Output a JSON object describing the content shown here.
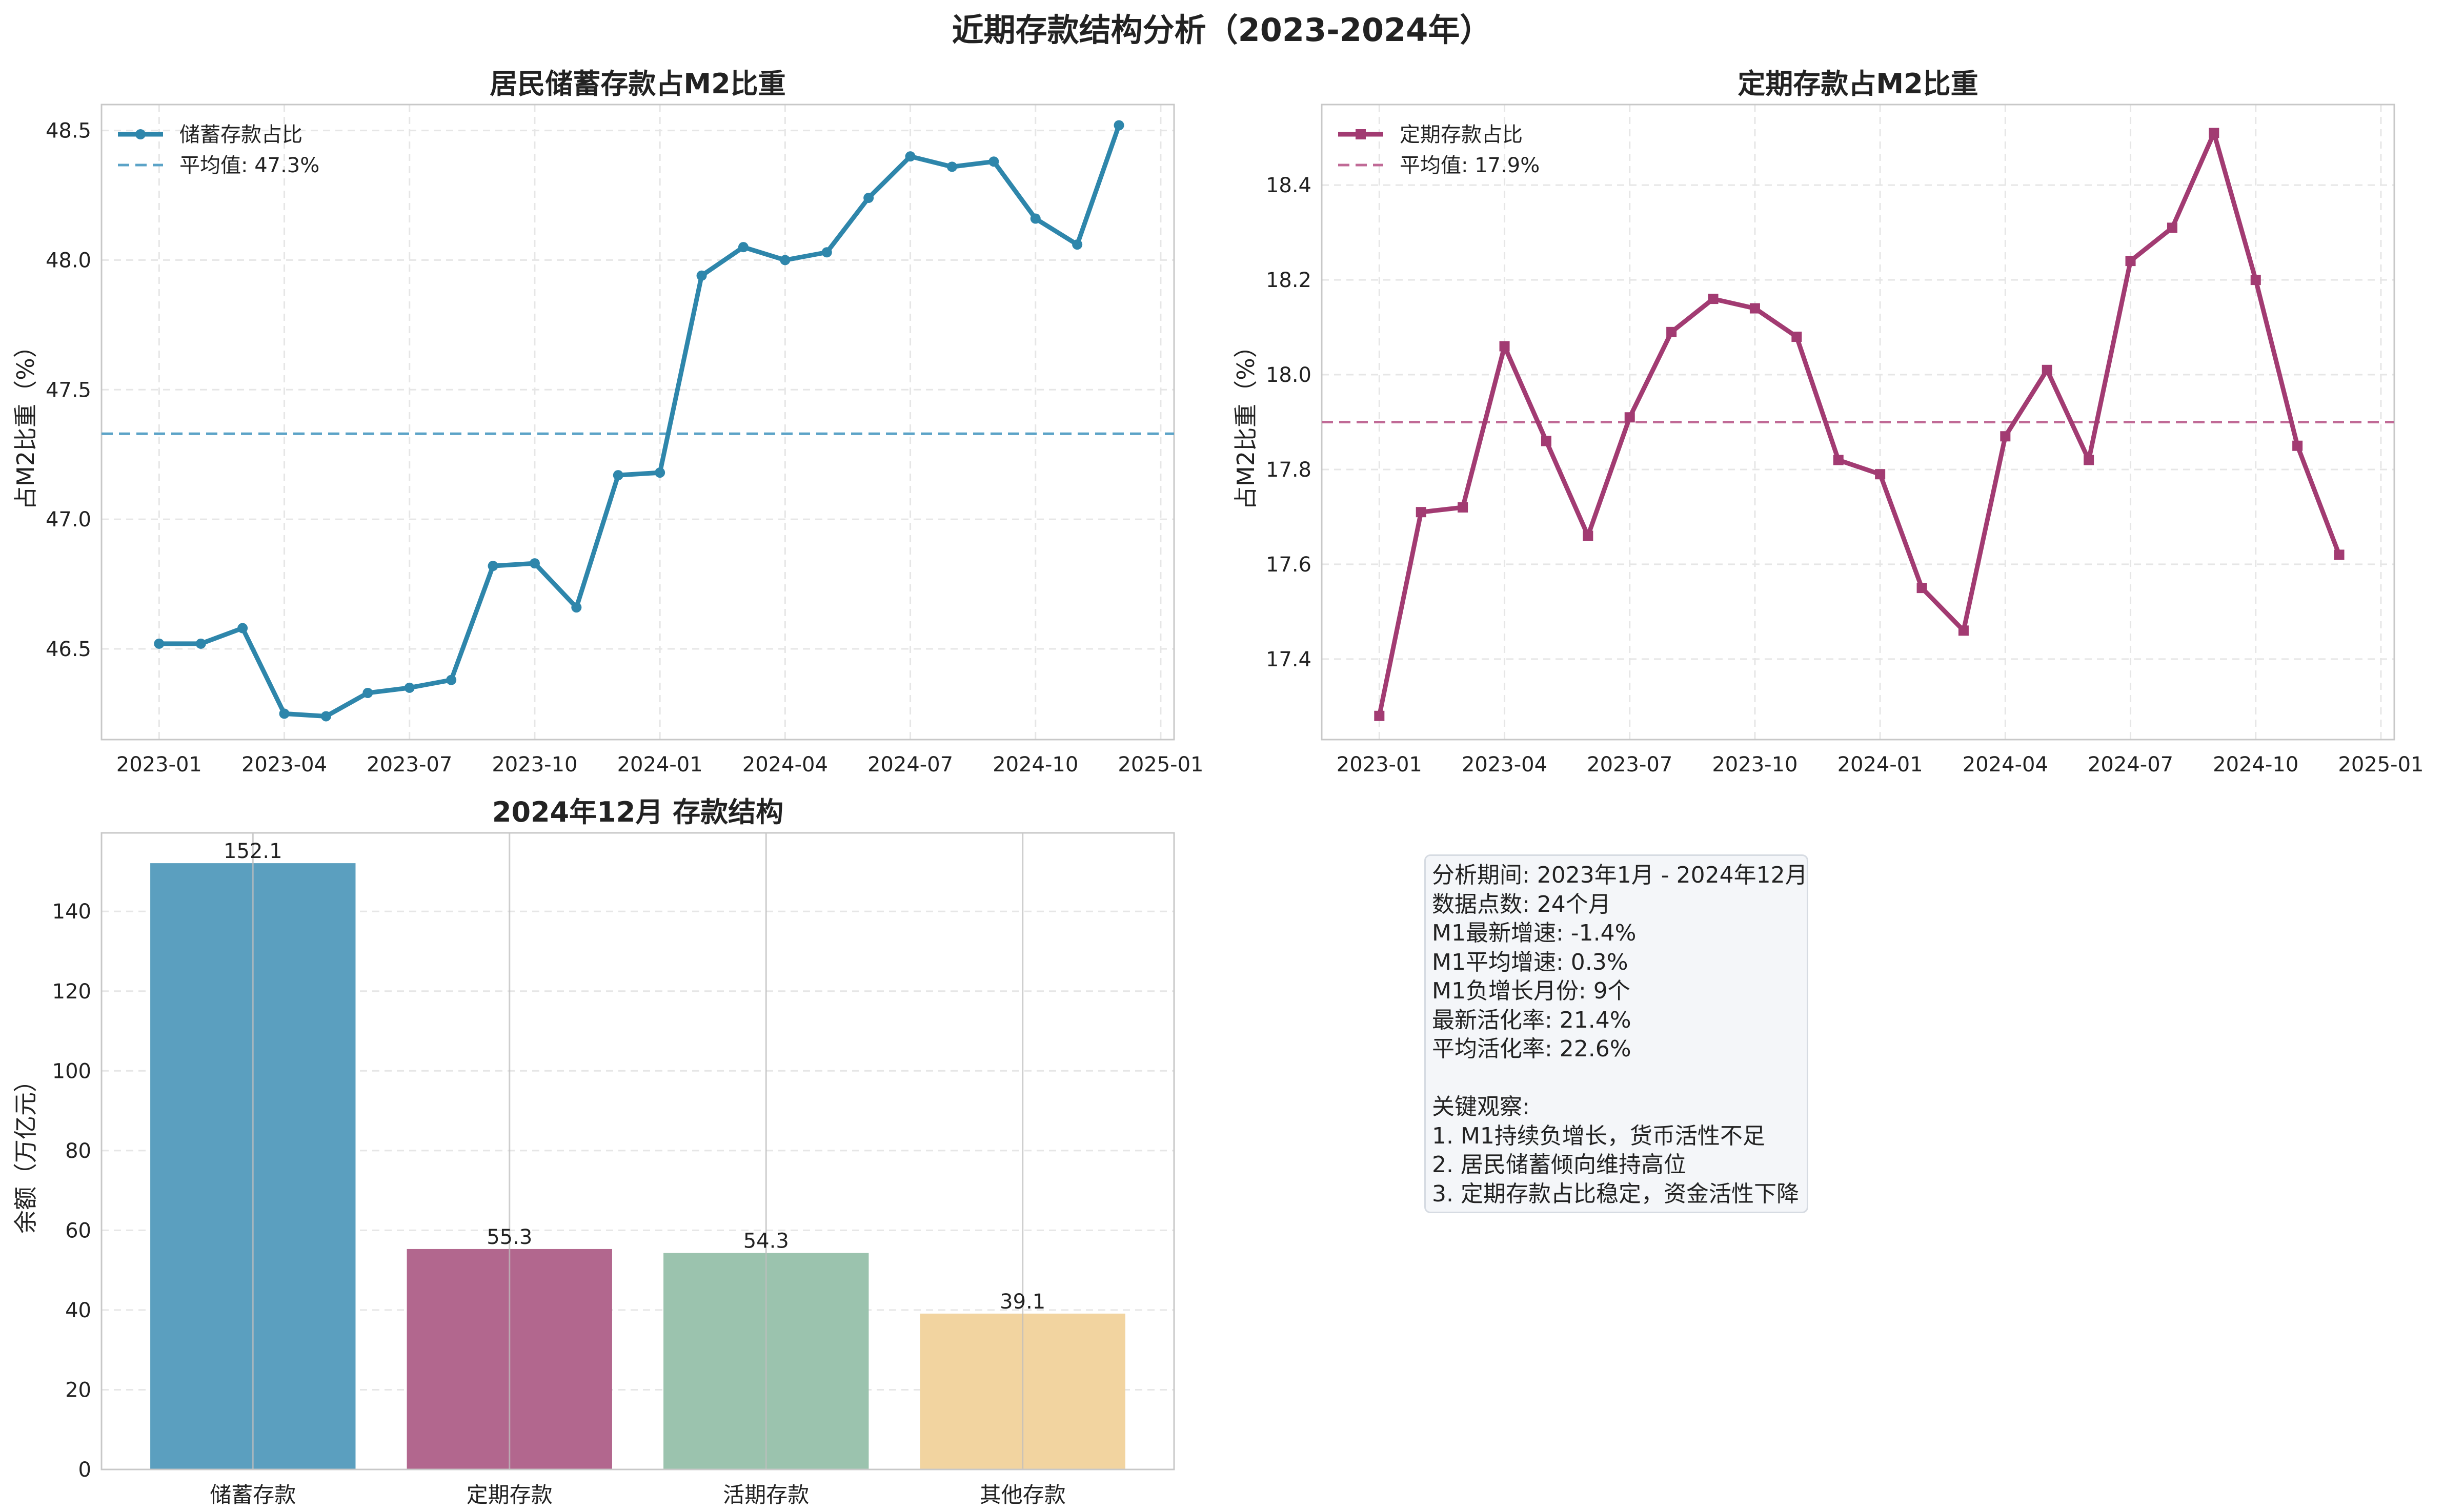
{
  "figure_title": "近期存款结构分析（2023-2024年）",
  "colors": {
    "savings": "#2e86ab",
    "fixed": "#a23b72",
    "savings_mean": "#5ba3c7",
    "fixed_mean": "#c06a96",
    "bars": [
      "#5b9fbf",
      "#b2678e",
      "#9bc3ae",
      "#f2d4a0"
    ]
  },
  "chart_data": [
    {
      "type": "line",
      "title": "居民储蓄存款占M2比重",
      "ylabel": "占M2比重（%）",
      "xlabel": "",
      "x": [
        "2023-01",
        "2023-02",
        "2023-03",
        "2023-04",
        "2023-05",
        "2023-06",
        "2023-07",
        "2023-08",
        "2023-09",
        "2023-10",
        "2023-11",
        "2023-12",
        "2024-01",
        "2024-02",
        "2024-03",
        "2024-04",
        "2024-05",
        "2024-06",
        "2024-07",
        "2024-08",
        "2024-09",
        "2024-10",
        "2024-11",
        "2024-12"
      ],
      "xticks": [
        "2023-01",
        "2023-04",
        "2023-07",
        "2023-10",
        "2024-01",
        "2024-04",
        "2024-07",
        "2024-10",
        "2025-01"
      ],
      "yticks": [
        46.5,
        47.0,
        47.5,
        48.0,
        48.5
      ],
      "ylim": [
        46.15,
        48.6
      ],
      "grid": true,
      "legend_position": "top-left",
      "series": [
        {
          "name": "储蓄存款占比",
          "marker": "circle",
          "values": [
            46.52,
            46.52,
            46.58,
            46.25,
            46.24,
            46.33,
            46.35,
            46.38,
            46.82,
            46.83,
            46.66,
            47.17,
            47.18,
            47.94,
            48.05,
            48.0,
            48.03,
            48.24,
            48.4,
            48.36,
            48.38,
            48.16,
            48.06,
            48.52
          ]
        }
      ],
      "mean": {
        "value": 47.33,
        "label": "平均值: 47.3%"
      }
    },
    {
      "type": "line",
      "title": "定期存款占M2比重",
      "ylabel": "占M2比重（%）",
      "xlabel": "",
      "x": [
        "2023-01",
        "2023-02",
        "2023-03",
        "2023-04",
        "2023-05",
        "2023-06",
        "2023-07",
        "2023-08",
        "2023-09",
        "2023-10",
        "2023-11",
        "2023-12",
        "2024-01",
        "2024-02",
        "2024-03",
        "2024-04",
        "2024-05",
        "2024-06",
        "2024-07",
        "2024-08",
        "2024-09",
        "2024-10",
        "2024-11",
        "2024-12"
      ],
      "xticks": [
        "2023-01",
        "2023-04",
        "2023-07",
        "2023-10",
        "2024-01",
        "2024-04",
        "2024-07",
        "2024-10",
        "2025-01"
      ],
      "yticks": [
        17.4,
        17.6,
        17.8,
        18.0,
        18.2,
        18.4
      ],
      "ylim": [
        17.23,
        18.57
      ],
      "grid": true,
      "legend_position": "top-left",
      "series": [
        {
          "name": "定期存款占比",
          "marker": "square",
          "values": [
            17.28,
            17.71,
            17.72,
            18.06,
            17.86,
            17.66,
            17.91,
            18.09,
            18.16,
            18.14,
            18.08,
            17.82,
            17.79,
            17.55,
            17.46,
            17.87,
            18.01,
            17.82,
            18.24,
            18.31,
            18.51,
            18.2,
            17.85,
            17.62
          ]
        }
      ],
      "mean": {
        "value": 17.9,
        "label": "平均值: 17.9%"
      }
    },
    {
      "type": "bar",
      "title": "2024年12月 存款结构",
      "ylabel": "余额（万亿元）",
      "xlabel": "",
      "categories": [
        "储蓄存款",
        "定期存款",
        "活期存款",
        "其他存款"
      ],
      "values": [
        152.1,
        55.3,
        54.3,
        39.1
      ],
      "value_labels": [
        "152.1",
        "55.3",
        "54.3",
        "39.1"
      ],
      "yticks": [
        0,
        20,
        40,
        60,
        80,
        100,
        120,
        140
      ],
      "ylim": [
        0,
        159.7
      ],
      "grid": true
    }
  ],
  "info_box": {
    "lines": [
      "分析期间: 2023年1月 - 2024年12月",
      "数据点数: 24个月",
      "M1最新增速: -1.4%",
      "M1平均增速: 0.3%",
      "M1负增长月份: 9个",
      "最新活化率: 21.4%",
      "平均活化率: 22.6%",
      "",
      "关键观察:",
      "1. M1持续负增长，货币活性不足",
      "2. 居民储蓄倾向维持高位",
      "3. 定期存款占比稳定，资金活性下降"
    ]
  }
}
